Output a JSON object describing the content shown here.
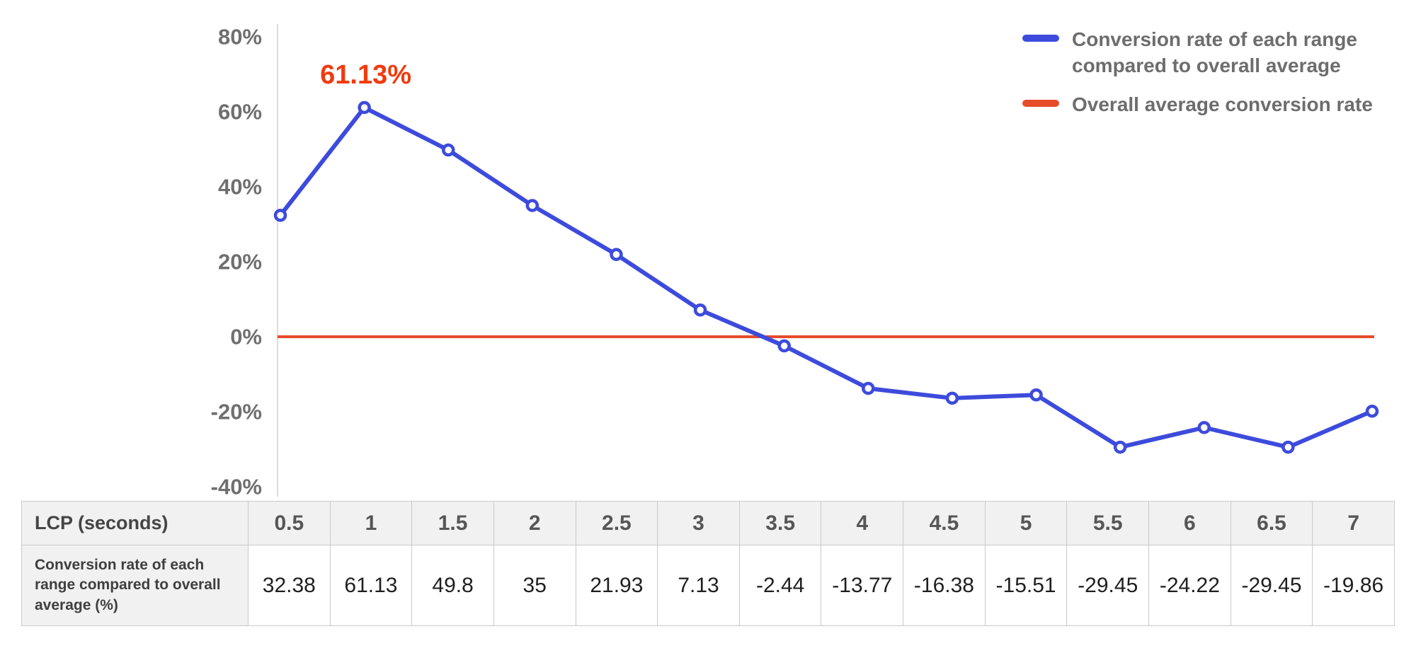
{
  "chart_data": {
    "type": "line",
    "xlabel": "LCP (seconds)",
    "ylabel": "",
    "x": [
      0.5,
      1,
      1.5,
      2,
      2.5,
      3,
      3.5,
      4,
      4.5,
      5,
      5.5,
      6,
      6.5,
      7
    ],
    "series": [
      {
        "name": "Conversion rate of each range compared to overall average",
        "values": [
          32.38,
          61.13,
          49.8,
          35,
          21.93,
          7.13,
          -2.44,
          -13.77,
          -16.38,
          -15.51,
          -29.45,
          -24.22,
          -29.45,
          -19.86
        ],
        "color": "#3d4bdc"
      },
      {
        "name": "Overall average conversion rate",
        "type": "constant",
        "value": 0,
        "color": "#e74c2a"
      }
    ],
    "annotation": {
      "text": "61.13%",
      "point_index": 1,
      "color": "#f03b0f"
    },
    "ylim": [
      -40,
      80
    ],
    "yticks": [
      80,
      60,
      40,
      20,
      0,
      -20,
      -40
    ],
    "ytick_suffix": "%",
    "grid": false,
    "legend_position": "top-right"
  },
  "legend": {
    "items": [
      {
        "label": "Conversion rate of each range compared to overall average",
        "color": "#3d4bdc"
      },
      {
        "label": "Overall average conversion rate",
        "color": "#e74c2a"
      }
    ]
  },
  "table": {
    "header_label": "LCP (seconds)",
    "row_label": "Conversion rate of each range compared to overall average (%)",
    "columns": [
      "0.5",
      "1",
      "1.5",
      "2",
      "2.5",
      "3",
      "3.5",
      "4",
      "4.5",
      "5",
      "5.5",
      "6",
      "6.5",
      "7"
    ],
    "values": [
      "32.38",
      "61.13",
      "49.8",
      "35",
      "21.93",
      "7.13",
      "-2.44",
      "-13.77",
      "-16.38",
      "-15.51",
      "-29.45",
      "-24.22",
      "-29.45",
      "-19.86"
    ]
  },
  "colors": {
    "line_blue": "#3d4bdc",
    "line_red": "#e74c2a",
    "annotation": "#f03b0f",
    "axis_label": "#6f6f6f",
    "table_header_bg": "#f1f1f1"
  }
}
